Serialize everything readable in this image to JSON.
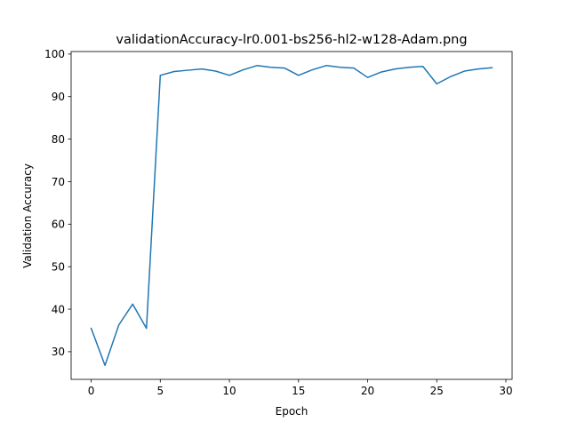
{
  "chart_data": {
    "type": "line",
    "title": "validationAccuracy-lr0.001-bs256-hl2-w128-Adam.png",
    "xlabel": "Epoch",
    "ylabel": "Validation Accuracy",
    "xlim": [
      -1.45,
      30.45
    ],
    "ylim": [
      23.5,
      100.6
    ],
    "xticks": [
      0,
      5,
      10,
      15,
      20,
      25,
      30
    ],
    "yticks": [
      30,
      40,
      50,
      60,
      70,
      80,
      90,
      100
    ],
    "grid": false,
    "series": [
      {
        "color": "#1f77b4",
        "x": [
          0,
          1,
          2,
          3,
          4,
          5,
          6,
          7,
          8,
          9,
          10,
          11,
          12,
          13,
          14,
          15,
          16,
          17,
          18,
          19,
          20,
          21,
          22,
          23,
          24,
          25,
          26,
          27,
          28,
          29
        ],
        "values": [
          35.5,
          26.8,
          36.3,
          41.2,
          35.5,
          95.0,
          95.9,
          96.2,
          96.5,
          96.0,
          95.0,
          96.3,
          97.3,
          96.9,
          96.7,
          95.0,
          96.3,
          97.3,
          96.9,
          96.7,
          94.5,
          95.8,
          96.5,
          96.9,
          97.1,
          93.0,
          94.7,
          96.0,
          96.5,
          96.8
        ]
      }
    ]
  }
}
